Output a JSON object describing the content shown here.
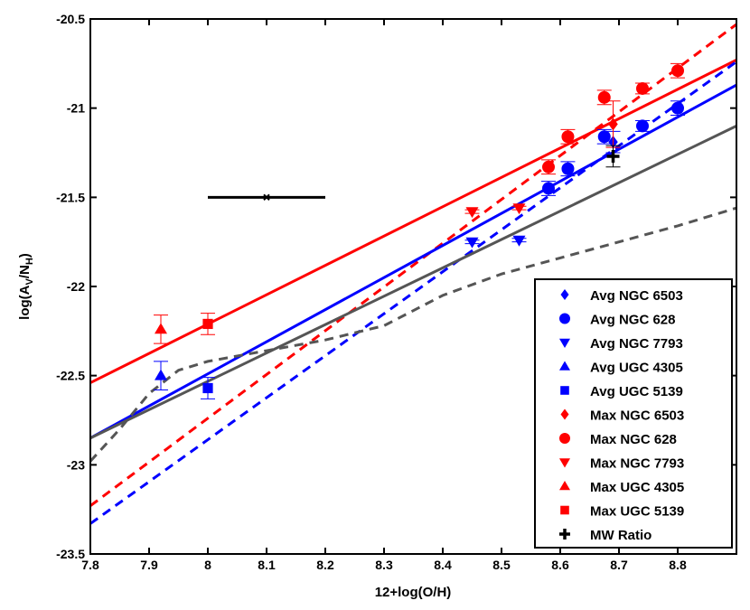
{
  "chart_data": {
    "type": "scatter",
    "title": "",
    "xlabel": "12+log(O/H)",
    "ylabel_main": "log(A",
    "ylabel_sub1": "V",
    "ylabel_mid": "/N",
    "ylabel_sub2": "H",
    "ylabel_end": ")",
    "xlim": [
      7.8,
      8.9
    ],
    "ylim": [
      -23.5,
      -20.5
    ],
    "xticks": [
      "7.8",
      "7.9",
      "8",
      "8.1",
      "8.2",
      "8.3",
      "8.4",
      "8.5",
      "8.6",
      "8.7",
      "8.8"
    ],
    "xtick_values": [
      7.8,
      7.9,
      8.0,
      8.1,
      8.2,
      8.3,
      8.4,
      8.5,
      8.6,
      8.7,
      8.8
    ],
    "yticks": [
      "-23.5",
      "-23",
      "-22.5",
      "-22",
      "-21.5",
      "-21",
      "-20.5"
    ],
    "ytick_values": [
      -23.5,
      -23,
      -22.5,
      -22,
      -21.5,
      -21,
      -20.5
    ],
    "grid": false,
    "legend_position": "bottom-right",
    "lines": [
      {
        "name": "red-solid",
        "color": "#ff0000",
        "dash": false,
        "x": [
          7.8,
          8.9
        ],
        "y": [
          -22.54,
          -20.73
        ]
      },
      {
        "name": "red-dashed",
        "color": "#ff0000",
        "dash": true,
        "x": [
          7.8,
          8.9
        ],
        "y": [
          -23.23,
          -20.53
        ]
      },
      {
        "name": "blue-solid",
        "color": "#0000ff",
        "dash": false,
        "x": [
          7.8,
          8.9
        ],
        "y": [
          -22.85,
          -20.87
        ]
      },
      {
        "name": "blue-dashed",
        "color": "#0000ff",
        "dash": true,
        "x": [
          7.8,
          8.9
        ],
        "y": [
          -23.33,
          -20.74
        ]
      },
      {
        "name": "gray-solid",
        "color": "#555555",
        "dash": false,
        "x": [
          7.8,
          8.9
        ],
        "y": [
          -22.85,
          -21.1
        ]
      },
      {
        "name": "gray-dashed",
        "color": "#555555",
        "dash": true,
        "x": [
          7.8,
          7.85,
          7.9,
          7.95,
          8.0,
          8.1,
          8.2,
          8.3,
          8.4,
          8.5,
          8.6,
          8.7,
          8.8,
          8.9
        ],
        "y": [
          -22.98,
          -22.8,
          -22.6,
          -22.47,
          -22.42,
          -22.36,
          -22.3,
          -22.22,
          -22.05,
          -21.93,
          -21.84,
          -21.75,
          -21.66,
          -21.56
        ]
      }
    ],
    "series": [
      {
        "name": "Avg NGC 6503",
        "color": "#0000ff",
        "marker": "diamond",
        "points": [
          [
            8.69,
            -21.19,
            0.06
          ]
        ]
      },
      {
        "name": "Avg NGC 628",
        "color": "#0000ff",
        "marker": "circle",
        "points": [
          [
            8.58,
            -21.45,
            0.04
          ],
          [
            8.613,
            -21.34,
            0.04
          ],
          [
            8.675,
            -21.16,
            0.04
          ],
          [
            8.74,
            -21.1,
            0.03
          ],
          [
            8.8,
            -21.0,
            0.04
          ]
        ]
      },
      {
        "name": "Avg NGC 7793",
        "color": "#0000ff",
        "marker": "down",
        "points": [
          [
            8.45,
            -21.75,
            0.01
          ],
          [
            8.53,
            -21.74,
            0.01
          ]
        ]
      },
      {
        "name": "Avg UGC 4305",
        "color": "#0000ff",
        "marker": "up",
        "points": [
          [
            7.92,
            -22.5,
            0.08
          ]
        ]
      },
      {
        "name": "Avg UGC 5139",
        "color": "#0000ff",
        "marker": "square",
        "points": [
          [
            8.0,
            -22.57,
            0.06
          ]
        ]
      },
      {
        "name": "Max NGC 6503",
        "color": "#ff0000",
        "marker": "diamond",
        "points": [
          [
            8.69,
            -21.09,
            0.13
          ]
        ]
      },
      {
        "name": "Max NGC 628",
        "color": "#ff0000",
        "marker": "circle",
        "points": [
          [
            8.58,
            -21.33,
            0.04
          ],
          [
            8.613,
            -21.16,
            0.04
          ],
          [
            8.675,
            -20.94,
            0.04
          ],
          [
            8.74,
            -20.89,
            0.03
          ],
          [
            8.8,
            -20.79,
            0.04
          ]
        ]
      },
      {
        "name": "Max NGC 7793",
        "color": "#ff0000",
        "marker": "down",
        "points": [
          [
            8.45,
            -21.58,
            0.01
          ],
          [
            8.53,
            -21.56,
            0.01
          ]
        ]
      },
      {
        "name": "Max UGC 4305",
        "color": "#ff0000",
        "marker": "up",
        "points": [
          [
            7.92,
            -22.24,
            0.08
          ]
        ]
      },
      {
        "name": "Max UGC 5139",
        "color": "#ff0000",
        "marker": "square",
        "points": [
          [
            8.0,
            -22.21,
            0.06
          ]
        ]
      },
      {
        "name": "MW Ratio",
        "color": "#000000",
        "marker": "plus",
        "points": [
          [
            8.69,
            -21.27,
            0.06
          ]
        ]
      }
    ],
    "xerror_bar": {
      "x": 8.1,
      "y": -21.5,
      "xerr": 0.1
    }
  }
}
